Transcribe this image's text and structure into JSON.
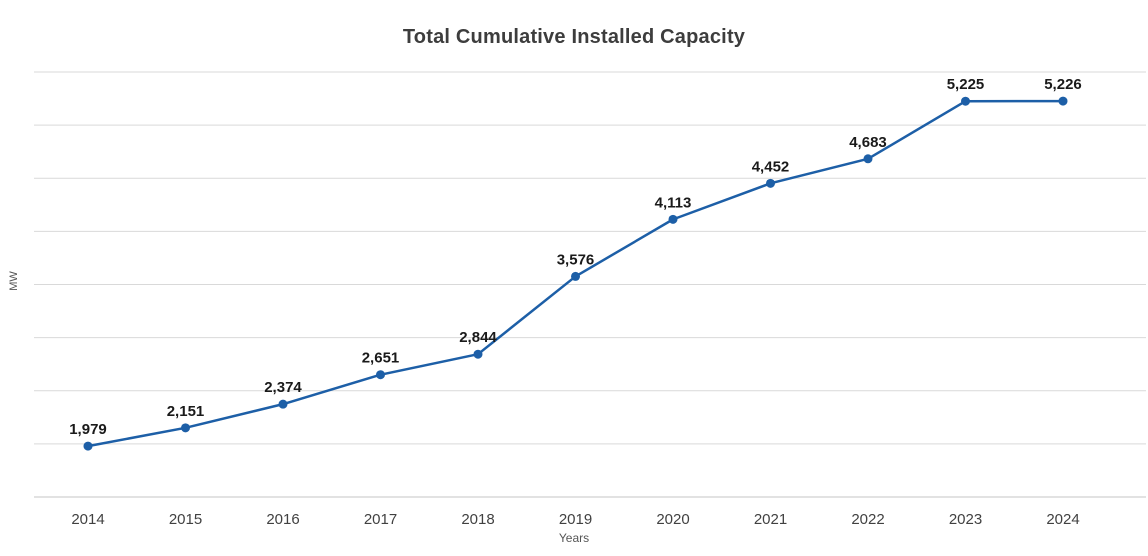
{
  "chart_data": {
    "type": "line",
    "title": "Total Cumulative Installed Capacity",
    "xlabel": "Years",
    "ylabel": "MW",
    "categories": [
      "2014",
      "2015",
      "2016",
      "2017",
      "2018",
      "2019",
      "2020",
      "2021",
      "2022",
      "2023",
      "2024"
    ],
    "values": [
      1979,
      2151,
      2374,
      2651,
      2844,
      3576,
      4113,
      4452,
      4683,
      5225,
      5226
    ],
    "data_labels": [
      "1,979",
      "2,151",
      "2,374",
      "2,651",
      "2,844",
      "3,576",
      "4,113",
      "4,452",
      "4,683",
      "5,225",
      "5,226"
    ],
    "ylim": [
      1500,
      5500
    ],
    "grid_step": 500,
    "grid": "horizontal",
    "legend": "none",
    "line_color": "#1d5fa7",
    "marker_color": "#1d5fa7",
    "grid_color": "#d9d9d9",
    "axis_line_color": "#c6c6c6",
    "label_color": "#1a1a1a"
  }
}
